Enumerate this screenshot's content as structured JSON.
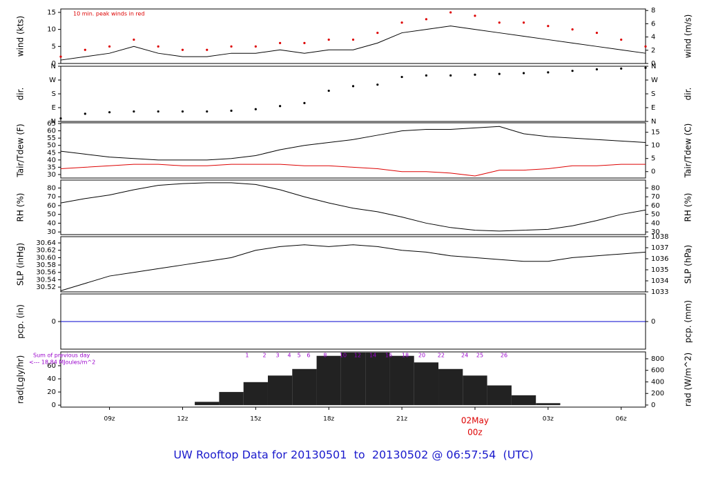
{
  "title": "UW Rooftop Data for 20130501  to  20130502 @ 06:57:54  (UTC)",
  "chart_data": [
    {
      "type": "line",
      "ylabel": "wind (kts)",
      "y2label": "wind (m/s)",
      "annotation": "10 min. peak winds in red",
      "x": [
        7,
        8,
        9,
        10,
        11,
        12,
        13,
        14,
        15,
        16,
        17,
        18,
        19,
        20,
        21,
        22,
        23,
        24,
        25,
        26,
        27,
        28,
        29,
        30,
        31
      ],
      "xlim": [
        7,
        31
      ],
      "series": [
        {
          "color": "#000000",
          "values": [
            1,
            2,
            3,
            5,
            3,
            2,
            2,
            3,
            3,
            4,
            3,
            4,
            4,
            6,
            9,
            10,
            11,
            10,
            9,
            8,
            7,
            6,
            5,
            4,
            3
          ]
        },
        {
          "type": "scatter",
          "color": "#dd0000",
          "values": [
            2,
            4,
            5,
            7,
            5,
            4,
            4,
            5,
            5,
            6,
            6,
            7,
            7,
            9,
            12,
            13,
            15,
            14,
            12,
            12,
            11,
            10,
            9,
            7,
            5
          ]
        }
      ],
      "ylim": [
        0,
        16
      ],
      "yticks": [
        0,
        5,
        10,
        15
      ],
      "y2lim": [
        0,
        8.23
      ],
      "y2ticks": [
        0,
        2,
        4,
        6,
        8
      ]
    },
    {
      "type": "scatter",
      "ylabel": "dir.",
      "y2label": "dir.",
      "x": [
        7,
        8,
        9,
        10,
        11,
        12,
        13,
        14,
        15,
        16,
        17,
        18,
        19,
        20,
        21,
        22,
        23,
        24,
        25,
        26,
        27,
        28,
        29,
        30,
        31
      ],
      "xlim": [
        7,
        31
      ],
      "series": [
        {
          "color": "#000000",
          "values": [
            20,
            50,
            60,
            65,
            65,
            65,
            65,
            70,
            80,
            100,
            120,
            200,
            230,
            240,
            290,
            300,
            300,
            305,
            310,
            315,
            320,
            330,
            340,
            345,
            350
          ]
        }
      ],
      "ylim": [
        0,
        360
      ],
      "yticks": [
        {
          "value": 0,
          "label": "N"
        },
        {
          "value": 90,
          "label": "E"
        },
        {
          "value": 180,
          "label": "S"
        },
        {
          "value": 270,
          "label": "W"
        },
        {
          "value": 360,
          "label": "N"
        }
      ],
      "y2lim": [
        0,
        360
      ],
      "y2ticks": [
        {
          "value": 0,
          "label": "N"
        },
        {
          "value": 90,
          "label": "E"
        },
        {
          "value": 180,
          "label": "S"
        },
        {
          "value": 270,
          "label": "W"
        },
        {
          "value": 360,
          "label": "N"
        }
      ]
    },
    {
      "type": "line",
      "ylabel": "Tair/Tdew (F)",
      "y2label": "Tair/Tdew (C)",
      "x": [
        7,
        8,
        9,
        10,
        11,
        12,
        13,
        14,
        15,
        16,
        17,
        18,
        19,
        20,
        21,
        22,
        23,
        24,
        25,
        26,
        27,
        28,
        29,
        30,
        31
      ],
      "xlim": [
        7,
        31
      ],
      "series": [
        {
          "color": "#000000",
          "values": [
            46,
            44,
            42,
            41,
            40,
            40,
            40,
            41,
            43,
            47,
            50,
            52,
            54,
            57,
            60,
            61,
            61,
            62,
            63,
            58,
            56,
            55,
            54,
            53,
            52
          ]
        },
        {
          "color": "#dd0000",
          "values": [
            34,
            35,
            36,
            37,
            37,
            36,
            36,
            37,
            37,
            37,
            36,
            36,
            35,
            34,
            32,
            32,
            31,
            29,
            33,
            33,
            34,
            36,
            36,
            37,
            37
          ]
        }
      ],
      "ylim": [
        27.6,
        65.5
      ],
      "yticks": [
        30,
        35,
        40,
        45,
        50,
        55,
        60,
        65
      ],
      "y2lim": [
        -2.44,
        18.6
      ],
      "y2ticks": [
        0,
        5,
        10,
        15
      ]
    },
    {
      "type": "line",
      "ylabel": "RH (%)",
      "y2label": "RH (%)",
      "x": [
        7,
        8,
        9,
        10,
        11,
        12,
        13,
        14,
        15,
        16,
        17,
        18,
        19,
        20,
        21,
        22,
        23,
        24,
        25,
        26,
        27,
        28,
        29,
        30,
        31
      ],
      "xlim": [
        7,
        31
      ],
      "series": [
        {
          "color": "#000000",
          "values": [
            63,
            68,
            72,
            78,
            83,
            85,
            86,
            86,
            84,
            78,
            70,
            63,
            57,
            53,
            47,
            40,
            35,
            32,
            31,
            32,
            33,
            37,
            43,
            50,
            55
          ]
        }
      ],
      "ylim": [
        27,
        89
      ],
      "yticks": [
        30,
        40,
        50,
        60,
        70,
        80
      ],
      "y2lim": [
        27,
        89
      ],
      "y2ticks": [
        30,
        40,
        50,
        60,
        70,
        80
      ]
    },
    {
      "type": "line",
      "ylabel": "SLP (inHg)",
      "y2label": "SLP (hPa)",
      "x": [
        7,
        8,
        9,
        10,
        11,
        12,
        13,
        14,
        15,
        16,
        17,
        18,
        19,
        20,
        21,
        22,
        23,
        24,
        25,
        26,
        27,
        28,
        29,
        30,
        31
      ],
      "xlim": [
        7,
        31
      ],
      "series": [
        {
          "color": "#000000",
          "values": [
            30.51,
            30.53,
            30.55,
            30.56,
            30.57,
            30.58,
            30.59,
            30.6,
            30.62,
            30.63,
            30.635,
            30.63,
            30.635,
            30.63,
            30.62,
            30.615,
            30.605,
            30.6,
            30.595,
            30.59,
            30.59,
            30.6,
            30.605,
            30.61,
            30.615
          ]
        }
      ],
      "ylim": [
        30.507,
        30.657
      ],
      "yticks": [
        {
          "value": 30.52,
          "label": "30.52"
        },
        {
          "value": 30.54,
          "label": "30.54"
        },
        {
          "value": 30.56,
          "label": "30.56"
        },
        {
          "value": 30.58,
          "label": "30.58"
        },
        {
          "value": 30.6,
          "label": "30.60"
        },
        {
          "value": 30.62,
          "label": "30.62"
        },
        {
          "value": 30.64,
          "label": "30.64"
        }
      ],
      "y2lim": [
        1033,
        1038
      ],
      "y2ticks": [
        1033,
        1034,
        1035,
        1036,
        1037,
        1038
      ]
    },
    {
      "type": "line",
      "ylabel": "pcp. (in)",
      "y2label": "pcp. (mm)",
      "x": [
        7,
        8,
        9,
        10,
        11,
        12,
        13,
        14,
        15,
        16,
        17,
        18,
        19,
        20,
        21,
        22,
        23,
        24,
        25,
        26,
        27,
        28,
        29,
        30,
        31
      ],
      "xlim": [
        7,
        31
      ],
      "series": [
        {
          "color": "#0000cc",
          "values": [
            0,
            0,
            0,
            0,
            0,
            0,
            0,
            0,
            0,
            0,
            0,
            0,
            0,
            0,
            0,
            0,
            0,
            0,
            0,
            0,
            0,
            0,
            0,
            0,
            0
          ]
        }
      ],
      "ylim": [
        -1,
        1
      ],
      "yticks": [
        0
      ],
      "y2lim": [
        -1,
        1
      ],
      "y2ticks": [
        0
      ]
    },
    {
      "type": "bar",
      "ylabel": "rad(Lgly/hr)",
      "y2label": "rad (W/m^2)",
      "annotations": [
        "Sum of previous day",
        "<--- 18.84 MJoules/m^2"
      ],
      "hour_marks": {
        "x": [
          14.65,
          15.36,
          15.9,
          16.38,
          16.78,
          17.17,
          17.85,
          18.59,
          19.18,
          19.81,
          20.46,
          21.14,
          21.82,
          22.61,
          23.58,
          24.2,
          25.19
        ],
        "values": [
          1,
          2,
          3,
          4,
          5,
          6,
          8,
          10,
          12,
          14,
          16,
          18,
          20,
          22,
          24,
          25,
          26
        ]
      },
      "x": [
        7,
        8,
        9,
        10,
        11,
        12,
        13,
        14,
        15,
        16,
        17,
        18,
        19,
        20,
        21,
        22,
        23,
        24,
        25,
        26,
        27,
        28,
        29,
        30,
        31
      ],
      "xlim": [
        7,
        31
      ],
      "series": [
        {
          "color": "#222222",
          "values": [
            0,
            0,
            0,
            0,
            0,
            0,
            5,
            20,
            35,
            45,
            55,
            75,
            80,
            80,
            75,
            65,
            55,
            45,
            30,
            15,
            3,
            0,
            0,
            0,
            0
          ]
        }
      ],
      "ylim": [
        -3,
        81
      ],
      "yticks": [
        0,
        20,
        40,
        60
      ],
      "y2lim": [
        -36,
        919
      ],
      "y2ticks": [
        0,
        200,
        400,
        600,
        800
      ],
      "xticks": [
        {
          "value": 9,
          "label": "09z"
        },
        {
          "value": 12,
          "label": "12z"
        },
        {
          "value": 15,
          "label": "15z"
        },
        {
          "value": 18,
          "label": "18z"
        },
        {
          "value": 21,
          "label": "21z"
        },
        {
          "value": 24,
          "label": "00z"
        },
        {
          "value": 27,
          "label": "03z"
        },
        {
          "value": 30,
          "label": "06z"
        }
      ],
      "date_label": {
        "value": 24,
        "label": "02May"
      }
    }
  ]
}
